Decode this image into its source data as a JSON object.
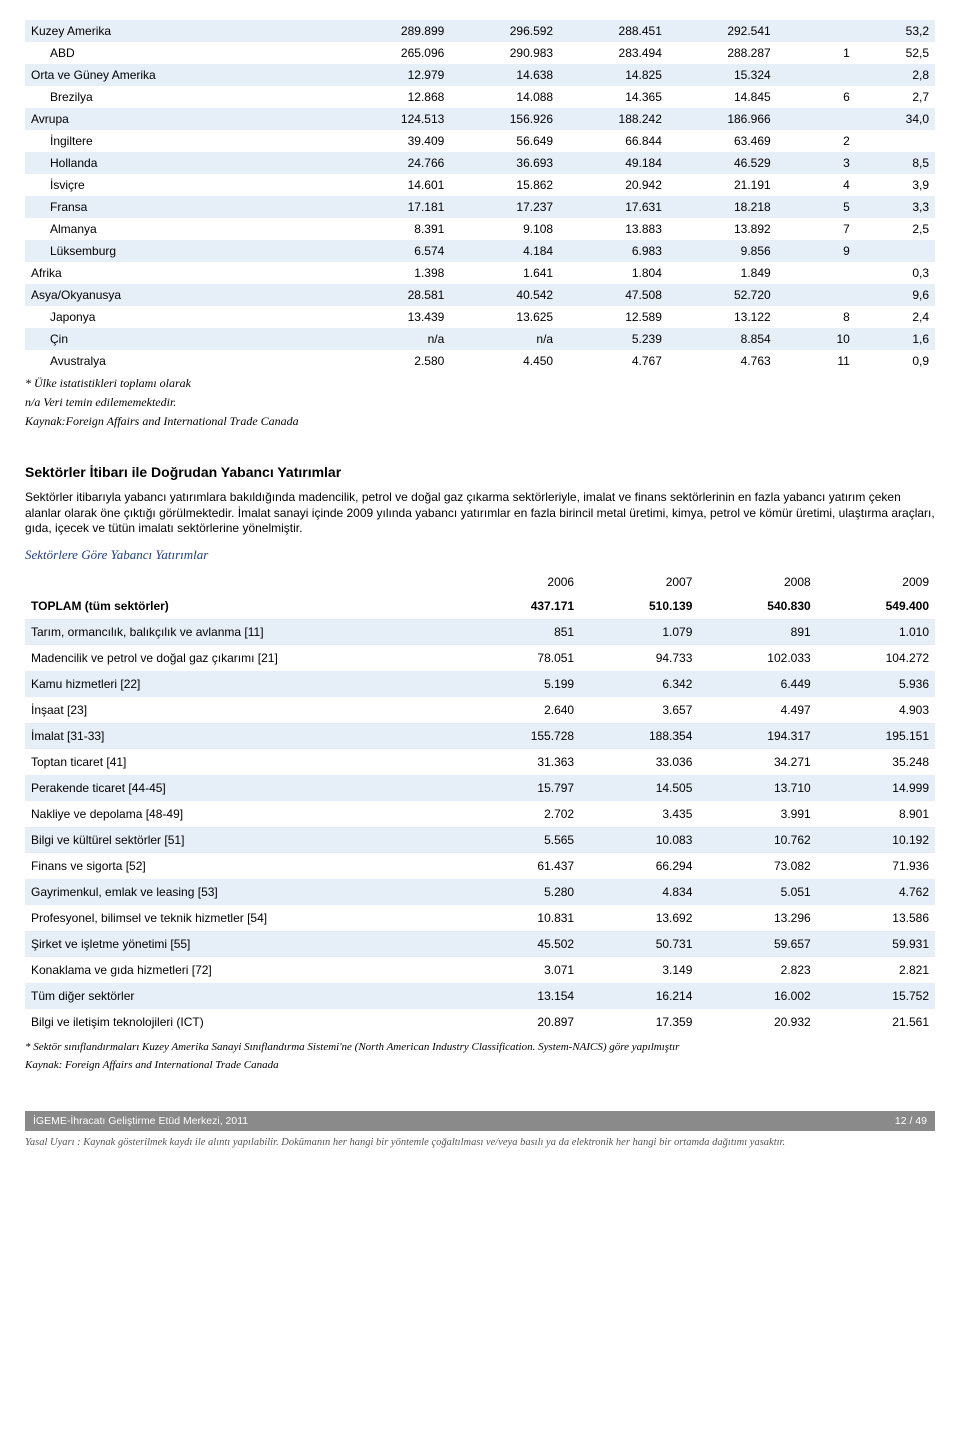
{
  "table1": {
    "columns_count": 7,
    "col_widths": [
      "32%",
      "11%",
      "11%",
      "11%",
      "11%",
      "8%",
      "8%"
    ],
    "rows": [
      {
        "class": "odd",
        "indent": 0,
        "cells": [
          "Kuzey Amerika",
          "289.899",
          "296.592",
          "288.451",
          "292.541",
          "",
          "53,2"
        ]
      },
      {
        "class": "even",
        "indent": 1,
        "cells": [
          "ABD",
          "265.096",
          "290.983",
          "283.494",
          "288.287",
          "1",
          "52,5"
        ]
      },
      {
        "class": "odd",
        "indent": 0,
        "cells": [
          "Orta ve Güney Amerika",
          "12.979",
          "14.638",
          "14.825",
          "15.324",
          "",
          "2,8"
        ]
      },
      {
        "class": "even",
        "indent": 1,
        "cells": [
          "Brezilya",
          "12.868",
          "14.088",
          "14.365",
          "14.845",
          "6",
          "2,7"
        ]
      },
      {
        "class": "odd",
        "indent": 0,
        "cells": [
          "Avrupa",
          "124.513",
          "156.926",
          "188.242",
          "186.966",
          "",
          "34,0"
        ]
      },
      {
        "class": "even",
        "indent": 1,
        "cells": [
          "İngiltere",
          "39.409",
          "56.649",
          "66.844",
          "63.469",
          "2",
          ""
        ]
      },
      {
        "class": "odd",
        "indent": 1,
        "cells": [
          "Hollanda",
          "24.766",
          "36.693",
          "49.184",
          "46.529",
          "3",
          "8,5"
        ]
      },
      {
        "class": "even",
        "indent": 1,
        "cells": [
          "İsviçre",
          "14.601",
          "15.862",
          "20.942",
          "21.191",
          "4",
          "3,9"
        ]
      },
      {
        "class": "odd",
        "indent": 1,
        "cells": [
          "Fransa",
          "17.181",
          "17.237",
          "17.631",
          "18.218",
          "5",
          "3,3"
        ]
      },
      {
        "class": "even",
        "indent": 1,
        "cells": [
          "Almanya",
          "8.391",
          "9.108",
          "13.883",
          "13.892",
          "7",
          "2,5"
        ]
      },
      {
        "class": "odd",
        "indent": 1,
        "cells": [
          "Lüksemburg",
          "6.574",
          "4.184",
          "6.983",
          "9.856",
          "9",
          ""
        ]
      },
      {
        "class": "even",
        "indent": 0,
        "cells": [
          "Afrika",
          "1.398",
          "1.641",
          "1.804",
          "1.849",
          "",
          "0,3"
        ]
      },
      {
        "class": "odd",
        "indent": 0,
        "cells": [
          "Asya/Okyanusya",
          "28.581",
          "40.542",
          "47.508",
          "52.720",
          "",
          "9,6"
        ]
      },
      {
        "class": "even",
        "indent": 1,
        "cells": [
          "Japonya",
          "13.439",
          "13.625",
          "12.589",
          "13.122",
          "8",
          "2,4"
        ]
      },
      {
        "class": "odd",
        "indent": 1,
        "cells": [
          "Çin",
          "n/a",
          "n/a",
          "5.239",
          "8.854",
          "10",
          "1,6"
        ]
      },
      {
        "class": "even",
        "indent": 1,
        "cells": [
          "Avustralya",
          "2.580",
          "4.450",
          "4.767",
          "4.763",
          "11",
          "0,9"
        ]
      }
    ]
  },
  "notes1": [
    "* Ülke istatistikleri toplamı olarak",
    "n/a Veri temin edilememektedir.",
    "Kaynak:Foreign Affairs and International Trade Canada"
  ],
  "section": {
    "title": "Sektörler İtibarı ile Doğrudan Yabancı Yatırımlar",
    "paragraph": "Sektörler itibarıyla yabancı yatırımlara bakıldığında madencilik, petrol ve doğal gaz çıkarma sektörleriyle, imalat ve finans sektörlerinin en fazla yabancı yatırım çeken alanlar olarak öne çıktığı görülmektedir. İmalat sanayi içinde 2009 yılında yabancı yatırımlar en fazla birincil metal üretimi, kimya, petrol ve kömür üretimi, ulaştırma araçları, gıda, içecek ve tütün imalatı sektörlerine yönelmiştir.",
    "subtitle": "Sektörlere Göre Yabancı Yatırımlar"
  },
  "table2": {
    "col_widths": [
      "48%",
      "13%",
      "13%",
      "13%",
      "13%"
    ],
    "header": [
      "",
      "2006",
      "2007",
      "2008",
      "2009"
    ],
    "rows": [
      {
        "class": "even bold",
        "indent": 0,
        "cells": [
          "TOPLAM (tüm sektörler)",
          "437.171",
          "510.139",
          "540.830",
          "549.400"
        ]
      },
      {
        "class": "odd",
        "indent": 1,
        "cells": [
          "Tarım, ormancılık, balıkçılık ve avlanma [11]",
          "851",
          "1.079",
          "891",
          "1.010"
        ]
      },
      {
        "class": "even",
        "indent": 1,
        "cells": [
          "Madencilik ve petrol ve doğal gaz çıkarımı [21]",
          "78.051",
          "94.733",
          "102.033",
          "104.272"
        ]
      },
      {
        "class": "odd",
        "indent": 1,
        "cells": [
          "Kamu hizmetleri [22]",
          "5.199",
          "6.342",
          "6.449",
          "5.936"
        ]
      },
      {
        "class": "even",
        "indent": 1,
        "cells": [
          "İnşaat [23]",
          "2.640",
          "3.657",
          "4.497",
          "4.903"
        ]
      },
      {
        "class": "odd",
        "indent": 1,
        "cells": [
          "İmalat [31-33]",
          "155.728",
          "188.354",
          "194.317",
          "195.151"
        ]
      },
      {
        "class": "even",
        "indent": 1,
        "cells": [
          "Toptan ticaret [41]",
          "31.363",
          "33.036",
          "34.271",
          "35.248"
        ]
      },
      {
        "class": "odd",
        "indent": 1,
        "cells": [
          "Perakende ticaret [44-45]",
          "15.797",
          "14.505",
          "13.710",
          "14.999"
        ]
      },
      {
        "class": "even",
        "indent": 1,
        "cells": [
          "Nakliye ve depolama [48-49]",
          "2.702",
          "3.435",
          "3.991",
          "8.901"
        ]
      },
      {
        "class": "odd",
        "indent": 1,
        "cells": [
          "Bilgi ve kültürel sektörler [51]",
          "5.565",
          "10.083",
          "10.762",
          "10.192"
        ]
      },
      {
        "class": "even",
        "indent": 1,
        "cells": [
          "Finans ve sigorta [52]",
          "61.437",
          "66.294",
          "73.082",
          "71.936"
        ]
      },
      {
        "class": "odd",
        "indent": 1,
        "cells": [
          "Gayrimenkul, emlak ve leasing [53]",
          "5.280",
          "4.834",
          "5.051",
          "4.762"
        ]
      },
      {
        "class": "even",
        "indent": 1,
        "cells": [
          "Profesyonel, bilimsel ve teknik hizmetler [54]",
          "10.831",
          "13.692",
          "13.296",
          "13.586"
        ]
      },
      {
        "class": "odd",
        "indent": 1,
        "cells": [
          "Şirket ve işletme yönetimi [55]",
          "45.502",
          "50.731",
          "59.657",
          "59.931"
        ]
      },
      {
        "class": "even",
        "indent": 1,
        "cells": [
          "Konaklama ve gıda hizmetleri [72]",
          "3.071",
          "3.149",
          "2.823",
          "2.821"
        ]
      },
      {
        "class": "odd",
        "indent": 1,
        "cells": [
          "Tüm diğer sektörler",
          "13.154",
          "16.214",
          "16.002",
          "15.752"
        ]
      },
      {
        "class": "even",
        "indent": 1,
        "cells": [
          "Bilgi ve iletişim teknolojileri (ICT)",
          "20.897",
          "17.359",
          "20.932",
          "21.561"
        ]
      }
    ]
  },
  "footnotes": [
    "* Sektör sınıflandırmaları Kuzey Amerika Sanayi Sınıflandırma Sistemi'ne (North American Industry Classification. System-NAICS) göre yapılmıştır",
    "Kaynak: Foreign Affairs and International Trade Canada"
  ],
  "footer": {
    "left": "İGEME-İhracatı Geliştirme Etüd Merkezi, 2011",
    "right": "12 / 49",
    "legal": "Yasal Uyarı : Kaynak gösterilmek kaydı ile alıntı yapılabilir. Dokümanın her hangi bir yöntemle çoğaltılması ve/veya basılı ya da elektronik her hangi bir ortamda dağıtımı yasaktır."
  }
}
